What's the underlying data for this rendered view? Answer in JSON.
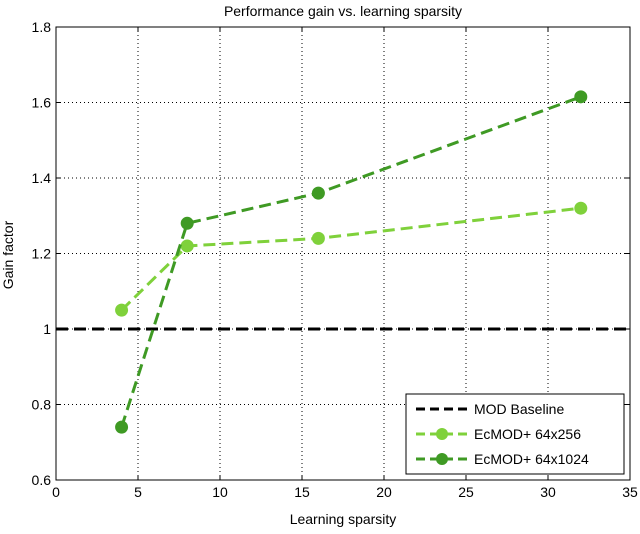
{
  "chart_data": {
    "type": "line",
    "title": "Performance gain vs. learning sparsity",
    "xlabel": "Learning sparsity",
    "ylabel": "Gain factor",
    "xlim": [
      0,
      35
    ],
    "ylim": [
      0.6,
      1.8
    ],
    "xticks": [
      0,
      5,
      10,
      15,
      20,
      25,
      30,
      35
    ],
    "yticks": [
      0.6,
      0.8,
      1,
      1.2,
      1.4,
      1.6,
      1.8
    ],
    "xtick_labels": [
      "0",
      "5",
      "10",
      "15",
      "20",
      "25",
      "30",
      "35"
    ],
    "ytick_labels": [
      "0.6",
      "0.8",
      "1",
      "1.2",
      "1.4",
      "1.6",
      "1.8"
    ],
    "grid": true,
    "legend_position": "bottom-right",
    "series": [
      {
        "name": "MOD Baseline",
        "x": [
          0,
          35
        ],
        "y": [
          1,
          1
        ],
        "color": "#000000",
        "style": "dashed",
        "marker": "none"
      },
      {
        "name": "EcMOD+ 64x256",
        "x": [
          4,
          8,
          16,
          32
        ],
        "y": [
          1.05,
          1.22,
          1.24,
          1.32
        ],
        "color": "#7fd13b",
        "style": "dashed",
        "marker": "circle"
      },
      {
        "name": "EcMOD+ 64x1024",
        "x": [
          4,
          8,
          16,
          32
        ],
        "y": [
          0.74,
          1.28,
          1.36,
          1.615
        ],
        "color": "#3f9a24",
        "style": "dashed",
        "marker": "circle"
      }
    ]
  }
}
